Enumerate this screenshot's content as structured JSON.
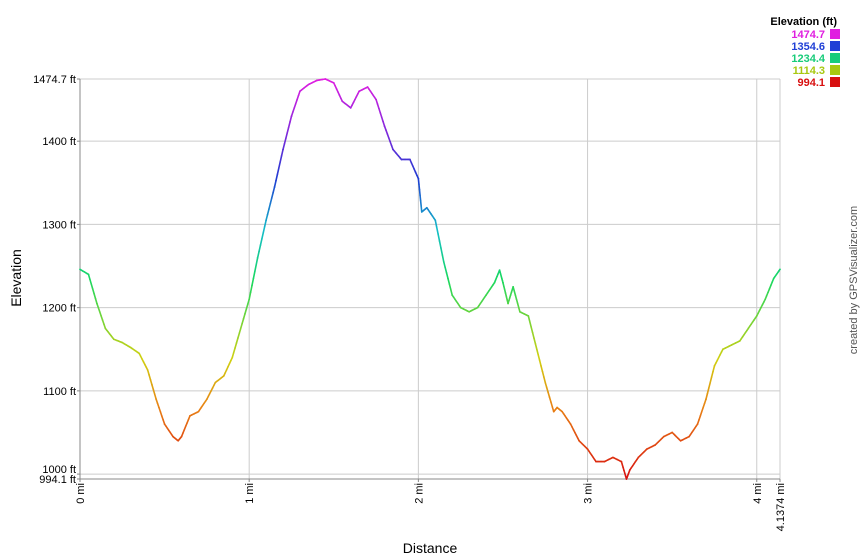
{
  "chart_data": {
    "type": "line",
    "xlabel": "Distance",
    "ylabel": "Elevation",
    "xlim": [
      0,
      4.1374
    ],
    "ylim": [
      994.1,
      1474.7
    ],
    "x_ticks": [
      {
        "value": 0,
        "label": "0 mi"
      },
      {
        "value": 1,
        "label": "1 mi"
      },
      {
        "value": 2,
        "label": "2 mi"
      },
      {
        "value": 3,
        "label": "3 mi"
      },
      {
        "value": 4,
        "label": "4 mi"
      },
      {
        "value": 4.1374,
        "label": "4.1374 mi"
      }
    ],
    "y_ticks": [
      {
        "value": 994.1,
        "label": "994.1 ft"
      },
      {
        "value": 1000,
        "label": "1000 ft"
      },
      {
        "value": 1100,
        "label": "1100 ft"
      },
      {
        "value": 1200,
        "label": "1200 ft"
      },
      {
        "value": 1300,
        "label": "1300 ft"
      },
      {
        "value": 1400,
        "label": "1400 ft"
      },
      {
        "value": 1474.7,
        "label": "1474.7 ft"
      }
    ],
    "grid": true,
    "legend": {
      "title": "Elevation (ft)",
      "placement": "top-right",
      "entries": [
        {
          "label": "1474.7",
          "color": "#e01ee0"
        },
        {
          "label": "1354.6",
          "color": "#1f3fd6"
        },
        {
          "label": "1234.4",
          "color": "#17cc7a"
        },
        {
          "label": "1114.3",
          "color": "#a8c810"
        },
        {
          "label": "994.1",
          "color": "#d81010"
        }
      ]
    },
    "credit": "created by GPSVisualizer.com",
    "series": [
      {
        "color_by": "elevation",
        "x": [
          0,
          0.05,
          0.1,
          0.15,
          0.2,
          0.25,
          0.3,
          0.35,
          0.4,
          0.45,
          0.5,
          0.55,
          0.58,
          0.6,
          0.65,
          0.7,
          0.75,
          0.8,
          0.85,
          0.9,
          0.95,
          1.0,
          1.05,
          1.1,
          1.15,
          1.2,
          1.25,
          1.3,
          1.35,
          1.4,
          1.45,
          1.5,
          1.55,
          1.6,
          1.65,
          1.7,
          1.75,
          1.8,
          1.85,
          1.9,
          1.95,
          2.0,
          2.02,
          2.05,
          2.1,
          2.15,
          2.2,
          2.25,
          2.3,
          2.35,
          2.4,
          2.45,
          2.48,
          2.5,
          2.53,
          2.56,
          2.6,
          2.65,
          2.7,
          2.75,
          2.8,
          2.82,
          2.85,
          2.9,
          2.95,
          3.0,
          3.05,
          3.1,
          3.15,
          3.2,
          3.23,
          3.25,
          3.3,
          3.35,
          3.4,
          3.45,
          3.5,
          3.55,
          3.6,
          3.65,
          3.7,
          3.75,
          3.8,
          3.85,
          3.9,
          3.95,
          4.0,
          4.05,
          4.1,
          4.1374
        ],
        "y": [
          1246,
          1240,
          1205,
          1175,
          1162,
          1158,
          1152,
          1145,
          1125,
          1090,
          1060,
          1045,
          1040,
          1045,
          1070,
          1075,
          1090,
          1110,
          1118,
          1140,
          1175,
          1210,
          1260,
          1305,
          1345,
          1390,
          1430,
          1460,
          1468,
          1473,
          1474.7,
          1470,
          1448,
          1440,
          1460,
          1465,
          1450,
          1418,
          1390,
          1378,
          1378,
          1355,
          1315,
          1320,
          1305,
          1255,
          1215,
          1200,
          1195,
          1200,
          1215,
          1230,
          1245,
          1230,
          1205,
          1225,
          1195,
          1190,
          1150,
          1110,
          1075,
          1080,
          1075,
          1060,
          1040,
          1030,
          1015,
          1015,
          1020,
          1015,
          994.1,
          1005,
          1020,
          1030,
          1035,
          1045,
          1050,
          1040,
          1045,
          1060,
          1090,
          1130,
          1150,
          1155,
          1160,
          1175,
          1190,
          1210,
          1235,
          1246
        ]
      }
    ]
  }
}
